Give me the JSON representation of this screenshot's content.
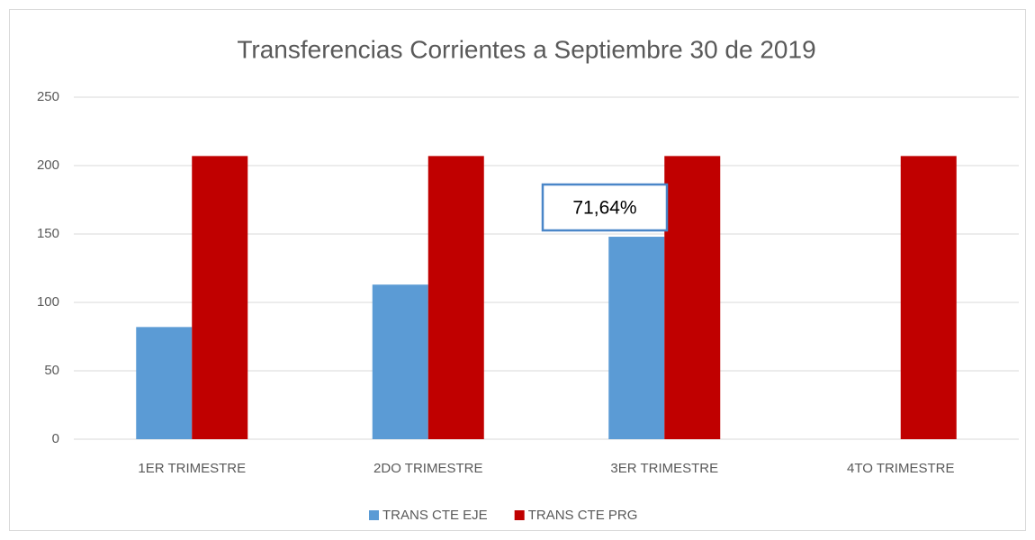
{
  "chart_data": {
    "type": "bar",
    "title": "Transferencias Corrientes a Septiembre 30 de 2019",
    "categories": [
      "1ER TRIMESTRE",
      "2DO TRIMESTRE",
      "3ER TRIMESTRE",
      "4TO TRIMESTRE"
    ],
    "series": [
      {
        "name": "TRANS CTE EJE",
        "color": "#5b9bd5",
        "values": [
          82,
          113,
          148,
          null
        ]
      },
      {
        "name": "TRANS CTE PRG",
        "color": "#c00000",
        "values": [
          207,
          207,
          207,
          207
        ]
      }
    ],
    "annotation": "71,64%",
    "ylim": [
      0,
      250
    ],
    "yticks": [
      0,
      50,
      100,
      150,
      200,
      250
    ],
    "grid": true,
    "legend": "bottom"
  }
}
